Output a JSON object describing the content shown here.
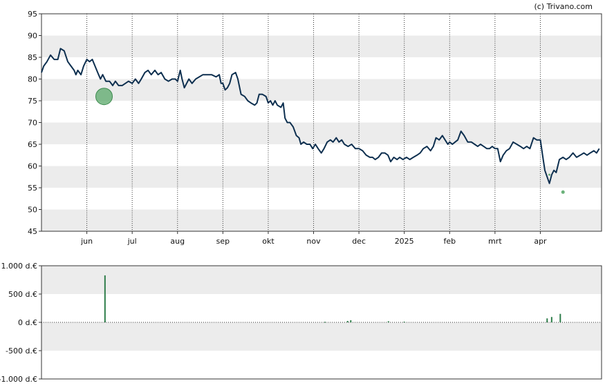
{
  "source_credit": "(c) Trivano.com",
  "colors": {
    "band": "#ececec",
    "price_line": "#0d2f4f",
    "marker": "#5aa86a",
    "volume_bar": "#2e7d4a",
    "grid": "#333333"
  },
  "chart_data": [
    {
      "type": "line",
      "title": "",
      "ylim": [
        45,
        95
      ],
      "y_ticks": [
        "95",
        "90",
        "85",
        "80",
        "75",
        "70",
        "65",
        "60",
        "55",
        "50",
        "45"
      ],
      "x_range": [
        0,
        12.35
      ],
      "x_ticks": [
        {
          "pos": 1.0,
          "label": "jun"
        },
        {
          "pos": 2.0,
          "label": "jul"
        },
        {
          "pos": 3.0,
          "label": "aug"
        },
        {
          "pos": 4.0,
          "label": "sep"
        },
        {
          "pos": 5.0,
          "label": "okt"
        },
        {
          "pos": 6.0,
          "label": "nov"
        },
        {
          "pos": 7.0,
          "label": "dec"
        },
        {
          "pos": 8.0,
          "label": "2025"
        },
        {
          "pos": 9.0,
          "label": "feb"
        },
        {
          "pos": 10.0,
          "label": "mrt"
        },
        {
          "pos": 11.0,
          "label": "apr"
        }
      ],
      "series": [
        {
          "points": [
            [
              0.0,
              81.5
            ],
            [
              0.05,
              83
            ],
            [
              0.12,
              84
            ],
            [
              0.2,
              85.5
            ],
            [
              0.28,
              84.5
            ],
            [
              0.36,
              84.5
            ],
            [
              0.42,
              87
            ],
            [
              0.5,
              86.5
            ],
            [
              0.58,
              84
            ],
            [
              0.65,
              83
            ],
            [
              0.72,
              82
            ],
            [
              0.76,
              81
            ],
            [
              0.8,
              82
            ],
            [
              0.87,
              81
            ],
            [
              0.93,
              83
            ],
            [
              1.0,
              84.5
            ],
            [
              1.06,
              84
            ],
            [
              1.12,
              84.5
            ],
            [
              1.18,
              83
            ],
            [
              1.24,
              81.5
            ],
            [
              1.3,
              80
            ],
            [
              1.35,
              81
            ],
            [
              1.42,
              79.5
            ],
            [
              1.5,
              79.5
            ],
            [
              1.57,
              78.5
            ],
            [
              1.63,
              79.5
            ],
            [
              1.7,
              78.5
            ],
            [
              1.78,
              78.5
            ],
            [
              1.85,
              79
            ],
            [
              1.92,
              79.5
            ],
            [
              2.0,
              79
            ],
            [
              2.07,
              80
            ],
            [
              2.14,
              79
            ],
            [
              2.2,
              80
            ],
            [
              2.28,
              81.5
            ],
            [
              2.35,
              82
            ],
            [
              2.42,
              81
            ],
            [
              2.5,
              82
            ],
            [
              2.57,
              81
            ],
            [
              2.64,
              81.5
            ],
            [
              2.72,
              80
            ],
            [
              2.8,
              79.5
            ],
            [
              2.88,
              80
            ],
            [
              2.95,
              80
            ],
            [
              3.0,
              79.5
            ],
            [
              3.06,
              82
            ],
            [
              3.1,
              80
            ],
            [
              3.15,
              78
            ],
            [
              3.2,
              79
            ],
            [
              3.25,
              80
            ],
            [
              3.32,
              79
            ],
            [
              3.4,
              80
            ],
            [
              3.48,
              80.5
            ],
            [
              3.56,
              81
            ],
            [
              3.65,
              81
            ],
            [
              3.75,
              81
            ],
            [
              3.85,
              80.5
            ],
            [
              3.92,
              81
            ],
            [
              3.96,
              79
            ],
            [
              4.0,
              79
            ],
            [
              4.05,
              77.5
            ],
            [
              4.1,
              78
            ],
            [
              4.15,
              79
            ],
            [
              4.2,
              81
            ],
            [
              4.28,
              81.5
            ],
            [
              4.33,
              80
            ],
            [
              4.4,
              76.5
            ],
            [
              4.48,
              76
            ],
            [
              4.55,
              75
            ],
            [
              4.62,
              74.5
            ],
            [
              4.7,
              74
            ],
            [
              4.75,
              74.5
            ],
            [
              4.8,
              76.5
            ],
            [
              4.87,
              76.5
            ],
            [
              4.95,
              76
            ],
            [
              5.0,
              74.5
            ],
            [
              5.05,
              75
            ],
            [
              5.1,
              74
            ],
            [
              5.15,
              75
            ],
            [
              5.2,
              74
            ],
            [
              5.28,
              73.5
            ],
            [
              5.33,
              74.5
            ],
            [
              5.37,
              71
            ],
            [
              5.42,
              70
            ],
            [
              5.48,
              70
            ],
            [
              5.55,
              69
            ],
            [
              5.62,
              67
            ],
            [
              5.68,
              66.5
            ],
            [
              5.72,
              65
            ],
            [
              5.78,
              65.5
            ],
            [
              5.85,
              65
            ],
            [
              5.92,
              65
            ],
            [
              5.98,
              64
            ],
            [
              6.04,
              65
            ],
            [
              6.1,
              64
            ],
            [
              6.17,
              63
            ],
            [
              6.23,
              64
            ],
            [
              6.3,
              65.5
            ],
            [
              6.37,
              66
            ],
            [
              6.43,
              65.5
            ],
            [
              6.5,
              66.5
            ],
            [
              6.56,
              65.5
            ],
            [
              6.62,
              66
            ],
            [
              6.68,
              65
            ],
            [
              6.76,
              64.5
            ],
            [
              6.84,
              65
            ],
            [
              6.92,
              64
            ],
            [
              7.0,
              64
            ],
            [
              7.08,
              63.5
            ],
            [
              7.16,
              62.5
            ],
            [
              7.24,
              62
            ],
            [
              7.3,
              62
            ],
            [
              7.36,
              61.5
            ],
            [
              7.43,
              62
            ],
            [
              7.5,
              63
            ],
            [
              7.57,
              63
            ],
            [
              7.64,
              62.5
            ],
            [
              7.7,
              61
            ],
            [
              7.77,
              62
            ],
            [
              7.84,
              61.5
            ],
            [
              7.9,
              62
            ],
            [
              7.97,
              61.5
            ],
            [
              8.05,
              62
            ],
            [
              8.12,
              61.5
            ],
            [
              8.2,
              62
            ],
            [
              8.28,
              62.5
            ],
            [
              8.35,
              63
            ],
            [
              8.42,
              64
            ],
            [
              8.5,
              64.5
            ],
            [
              8.58,
              63.5
            ],
            [
              8.64,
              64.5
            ],
            [
              8.7,
              66.5
            ],
            [
              8.77,
              66
            ],
            [
              8.84,
              67
            ],
            [
              8.9,
              66
            ],
            [
              8.96,
              65
            ],
            [
              9.0,
              65.5
            ],
            [
              9.06,
              65
            ],
            [
              9.12,
              65.5
            ],
            [
              9.18,
              66
            ],
            [
              9.25,
              68
            ],
            [
              9.32,
              67
            ],
            [
              9.4,
              65.5
            ],
            [
              9.48,
              65.5
            ],
            [
              9.55,
              65
            ],
            [
              9.62,
              64.5
            ],
            [
              9.68,
              65
            ],
            [
              9.75,
              64.5
            ],
            [
              9.82,
              64
            ],
            [
              9.88,
              64
            ],
            [
              9.94,
              64.5
            ],
            [
              10.0,
              64
            ],
            [
              10.06,
              64
            ],
            [
              10.12,
              61
            ],
            [
              10.18,
              62.5
            ],
            [
              10.25,
              63.5
            ],
            [
              10.32,
              64
            ],
            [
              10.4,
              65.5
            ],
            [
              10.48,
              65
            ],
            [
              10.56,
              64.5
            ],
            [
              10.63,
              64
            ],
            [
              10.7,
              64.5
            ],
            [
              10.77,
              64
            ],
            [
              10.85,
              66.5
            ],
            [
              10.92,
              66
            ],
            [
              11.0,
              66
            ],
            [
              11.05,
              62.5
            ],
            [
              11.1,
              59
            ],
            [
              11.15,
              57.5
            ],
            [
              11.2,
              56
            ],
            [
              11.25,
              58
            ],
            [
              11.3,
              59
            ],
            [
              11.35,
              58.5
            ],
            [
              11.42,
              61.5
            ],
            [
              11.5,
              62
            ],
            [
              11.57,
              61.5
            ],
            [
              11.64,
              62
            ],
            [
              11.72,
              63
            ],
            [
              11.8,
              62
            ],
            [
              11.88,
              62.5
            ],
            [
              11.96,
              63
            ],
            [
              12.03,
              62.5
            ],
            [
              12.1,
              63
            ],
            [
              12.18,
              63.5
            ],
            [
              12.24,
              63
            ],
            [
              12.3,
              64
            ]
          ]
        }
      ],
      "markers": [
        {
          "x": 1.38,
          "y": 76,
          "size": "large"
        },
        {
          "x": 11.2,
          "y": 58,
          "size": "tiny"
        },
        {
          "x": 11.5,
          "y": 54,
          "size": "small"
        }
      ]
    },
    {
      "type": "bar",
      "title": "",
      "ylim": [
        -1000,
        1000
      ],
      "y_ticks": [
        "1.000 d.€",
        "500 d.€",
        "0 d.€",
        "-500 d.€",
        "-1.000 d.€"
      ],
      "x_range": [
        0,
        12.35
      ],
      "series": [
        {
          "bars": [
            [
              1.4,
              830
            ],
            [
              6.25,
              8
            ],
            [
              6.75,
              25
            ],
            [
              6.82,
              38
            ],
            [
              7.65,
              20
            ],
            [
              8.0,
              12
            ],
            [
              11.15,
              70
            ],
            [
              11.25,
              95
            ],
            [
              11.44,
              150
            ]
          ]
        }
      ]
    }
  ]
}
